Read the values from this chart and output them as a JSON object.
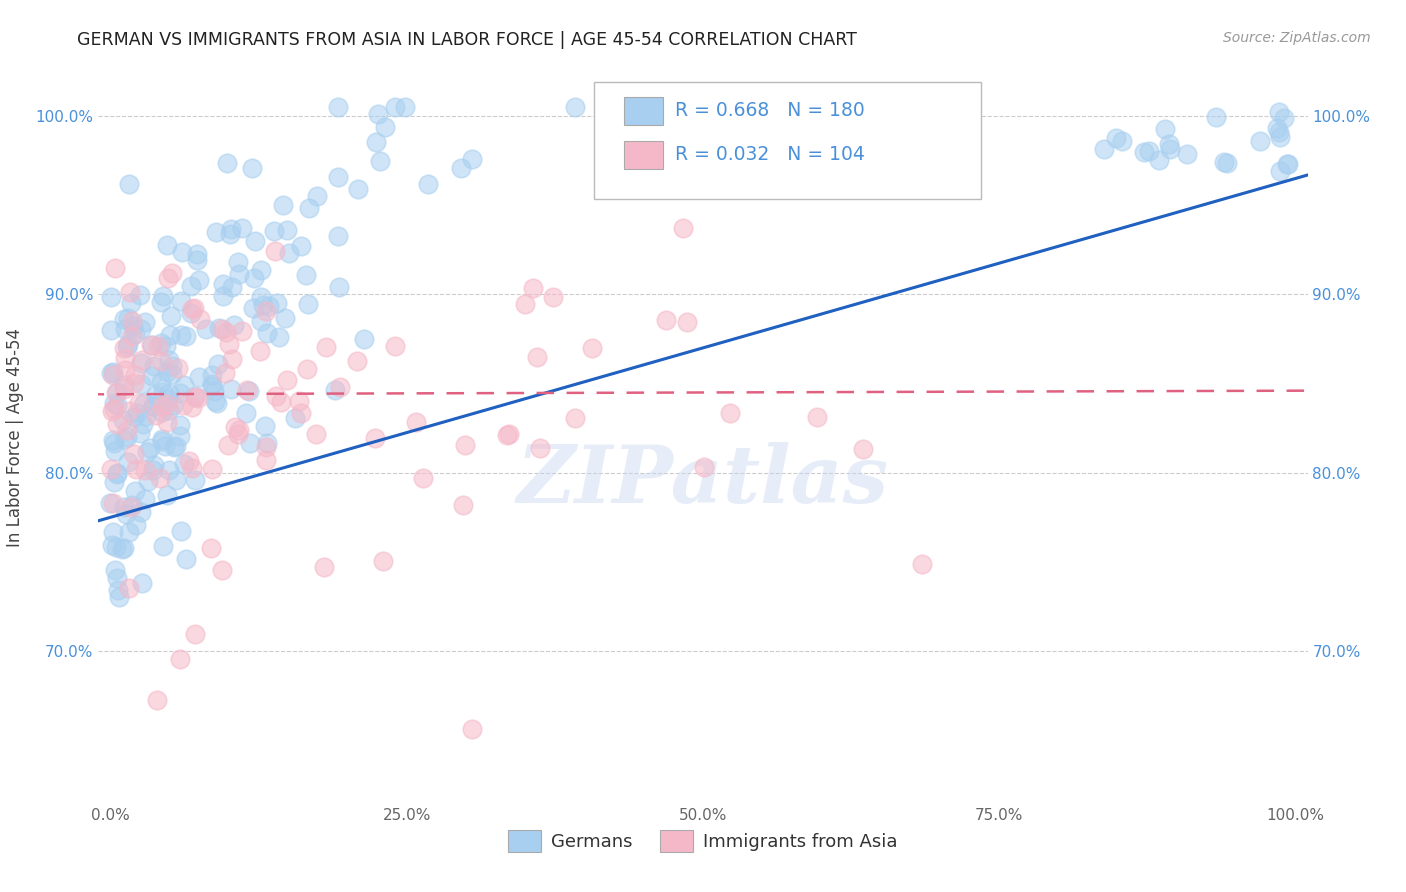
{
  "title": "GERMAN VS IMMIGRANTS FROM ASIA IN LABOR FORCE | AGE 45-54 CORRELATION CHART",
  "source": "Source: ZipAtlas.com",
  "ylabel": "In Labor Force | Age 45-54",
  "legend_label_1": "Germans",
  "legend_label_2": "Immigrants from Asia",
  "R1": 0.668,
  "N1": 180,
  "R2": 0.032,
  "N2": 104,
  "color_blue": "#a8cff0",
  "color_blue_fill": "#a8cff0",
  "color_pink": "#f5b8c8",
  "color_blue_text": "#4a90d9",
  "color_line_blue": "#2060c0",
  "color_line_pink": "#e06080",
  "watermark_color": "#c8d8f0",
  "ymin": 0.615,
  "ymax": 1.025,
  "xmin": -0.01,
  "xmax": 1.01,
  "ytick_labels": [
    "70.0%",
    "80.0%",
    "90.0%",
    "100.0%"
  ],
  "ytick_values": [
    0.7,
    0.8,
    0.9,
    1.0
  ],
  "xtick_labels": [
    "0.0%",
    "25.0%",
    "50.0%",
    "75.0%",
    "100.0%"
  ],
  "xtick_values": [
    0.0,
    0.25,
    0.5,
    0.75,
    1.0
  ],
  "background_color": "#ffffff",
  "grid_color": "#cccccc"
}
